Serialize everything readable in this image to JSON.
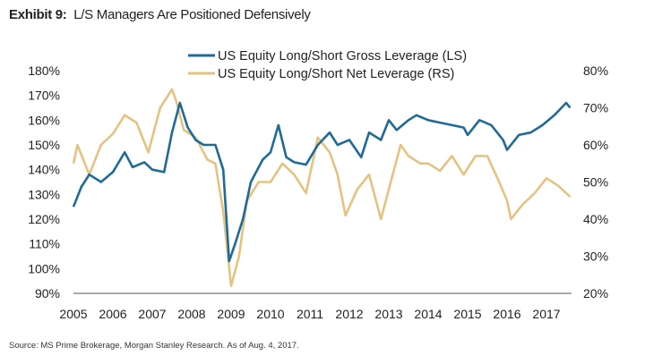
{
  "title": {
    "label": "Exhibit 9:",
    "text": "L/S Managers Are Positioned Defensively"
  },
  "source": "Source: MS Prime Brokerage, Morgan Stanley Research. As of Aug. 4, 2017.",
  "chart_data": {
    "type": "line",
    "title": "L/S Managers Are Positioned Defensively",
    "xlim": [
      2005,
      2017.6
    ],
    "x_ticks": [
      "2005",
      "2006",
      "2007",
      "2008",
      "2009",
      "2010",
      "2011",
      "2012",
      "2013",
      "2014",
      "2015",
      "2016",
      "2017"
    ],
    "y_left": {
      "lim": [
        90,
        180
      ],
      "ticks": [
        "90%",
        "100%",
        "110%",
        "120%",
        "130%",
        "140%",
        "150%",
        "160%",
        "170%",
        "180%"
      ]
    },
    "y_right": {
      "lim": [
        20,
        80
      ],
      "ticks": [
        "20%",
        "30%",
        "40%",
        "50%",
        "60%",
        "70%",
        "80%"
      ]
    },
    "legend_position": "top-center",
    "grid": false,
    "series": [
      {
        "name": "US Equity Long/Short Gross Leverage (LS)",
        "axis": "left",
        "color": "#1f6b97",
        "x": [
          2005.0,
          2005.2,
          2005.4,
          2005.7,
          2006.0,
          2006.3,
          2006.5,
          2006.8,
          2007.0,
          2007.3,
          2007.5,
          2007.7,
          2007.9,
          2008.1,
          2008.3,
          2008.6,
          2008.8,
          2008.95,
          2009.1,
          2009.3,
          2009.5,
          2009.8,
          2010.0,
          2010.2,
          2010.4,
          2010.6,
          2010.9,
          2011.2,
          2011.5,
          2011.7,
          2012.0,
          2012.3,
          2012.5,
          2012.8,
          2013.0,
          2013.2,
          2013.5,
          2013.7,
          2014.0,
          2014.3,
          2014.6,
          2014.9,
          2015.0,
          2015.3,
          2015.6,
          2015.9,
          2016.0,
          2016.3,
          2016.6,
          2016.9,
          2017.2,
          2017.5,
          2017.6
        ],
        "y": [
          125,
          133,
          138,
          135,
          139,
          147,
          141,
          143,
          140,
          139,
          155,
          167,
          157,
          152,
          150,
          150,
          140,
          103,
          110,
          120,
          135,
          144,
          147,
          158,
          145,
          143,
          142,
          150,
          155,
          150,
          152,
          145,
          155,
          152,
          160,
          156,
          160,
          162,
          160,
          159,
          158,
          157,
          154,
          160,
          158,
          152,
          148,
          154,
          155,
          158,
          162,
          167,
          165
        ]
      },
      {
        "name": "US Equity Long/Short Net Leverage (RS)",
        "axis": "right",
        "color": "#e6c281",
        "x": [
          2005.0,
          2005.1,
          2005.4,
          2005.7,
          2006.0,
          2006.3,
          2006.6,
          2006.9,
          2007.2,
          2007.5,
          2007.6,
          2007.8,
          2008.1,
          2008.4,
          2008.6,
          2008.8,
          2009.0,
          2009.2,
          2009.4,
          2009.7,
          2010.0,
          2010.3,
          2010.6,
          2010.9,
          2011.2,
          2011.5,
          2011.7,
          2011.9,
          2012.2,
          2012.5,
          2012.8,
          2013.1,
          2013.3,
          2013.5,
          2013.8,
          2014.0,
          2014.3,
          2014.6,
          2014.9,
          2015.2,
          2015.5,
          2015.8,
          2016.0,
          2016.1,
          2016.4,
          2016.7,
          2017.0,
          2017.3,
          2017.6
        ],
        "y": [
          55,
          60,
          52,
          60,
          63,
          68,
          66,
          58,
          70,
          75,
          72,
          64,
          62,
          56,
          55,
          42,
          22,
          30,
          45,
          50,
          50,
          55,
          52,
          47,
          62,
          58,
          52,
          41,
          48,
          52,
          40,
          52,
          60,
          57,
          55,
          55,
          53,
          57,
          52,
          57,
          57,
          50,
          45,
          40,
          44,
          47,
          51,
          49,
          46
        ]
      }
    ]
  }
}
